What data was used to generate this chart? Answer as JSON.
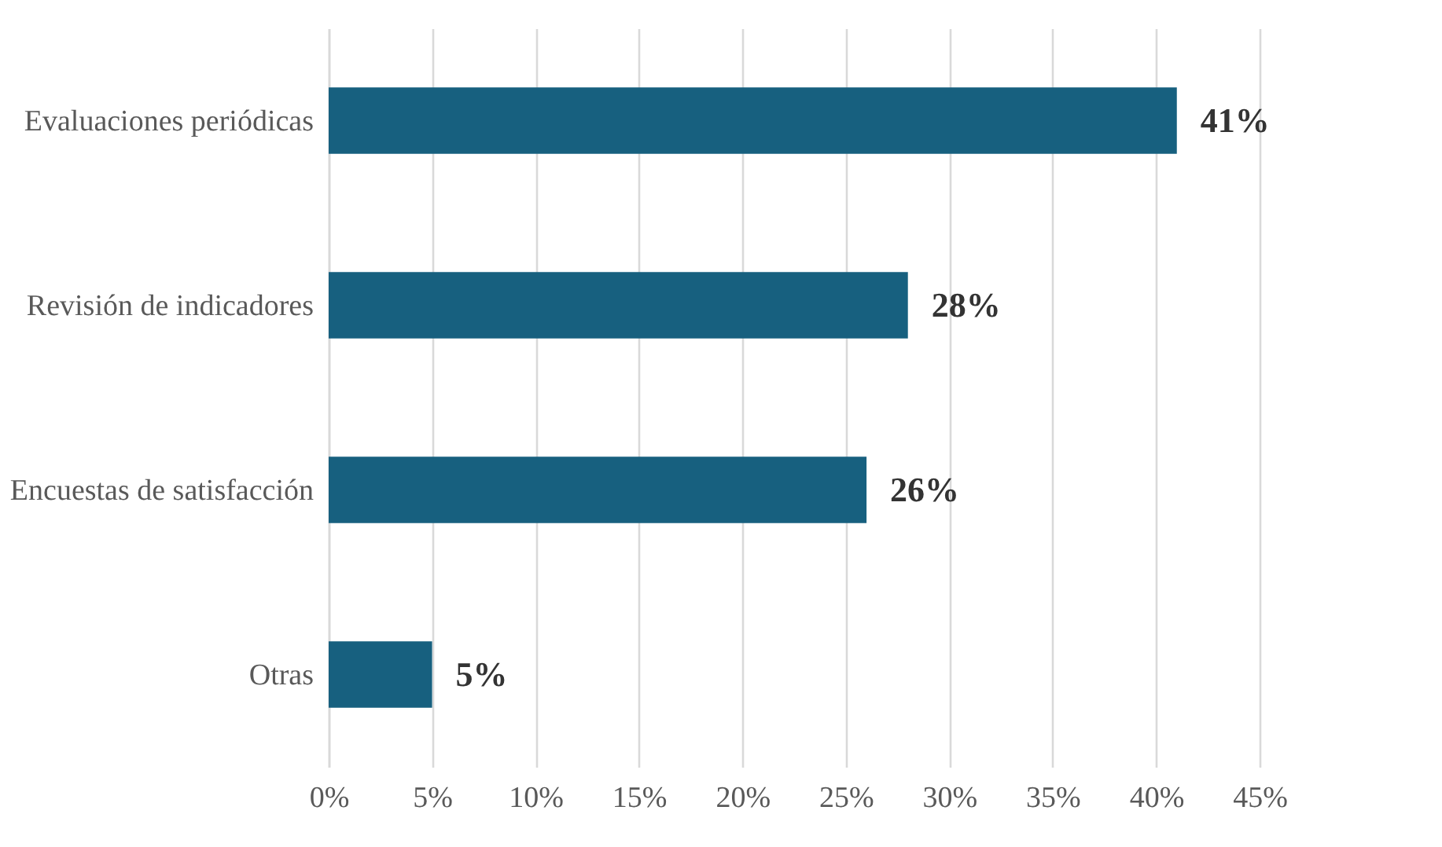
{
  "chart_data": {
    "type": "bar",
    "orientation": "horizontal",
    "categories": [
      "Evaluaciones periódicas",
      "Revisión de indicadores",
      "Encuestas de satisfacción",
      "Otras"
    ],
    "values": [
      41,
      28,
      26,
      5
    ],
    "value_labels": [
      "41%",
      "28%",
      "26%",
      "5%"
    ],
    "color": "#17607f",
    "xlim": [
      0,
      45
    ],
    "xticks": [
      {
        "value": 0,
        "label": "0%"
      },
      {
        "value": 5,
        "label": "5%"
      },
      {
        "value": 10,
        "label": "10%"
      },
      {
        "value": 15,
        "label": "15%"
      },
      {
        "value": 20,
        "label": "20%"
      },
      {
        "value": 25,
        "label": "25%"
      },
      {
        "value": 30,
        "label": "30%"
      },
      {
        "value": 35,
        "label": "35%"
      },
      {
        "value": 40,
        "label": "40%"
      },
      {
        "value": 45,
        "label": "45%"
      }
    ],
    "grid": "x"
  }
}
